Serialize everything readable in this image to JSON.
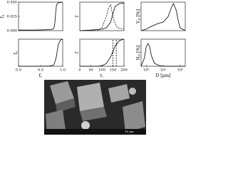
{
  "chart_data": [
    {
      "type": "line",
      "ylabel": {
        "text": "f",
        "sub": "S"
      },
      "xlim": [
        0,
        1
      ],
      "ylim": [
        0,
        0.05
      ],
      "yticks": [
        {
          "value": 0,
          "label": "0.000"
        },
        {
          "value": 0.025,
          "label": "0.025"
        },
        {
          "value": 0.05,
          "label": "0.050"
        }
      ],
      "series": [
        {
          "color": "#000000",
          "dash": false,
          "x": [
            0,
            0.2,
            0.4,
            0.6,
            0.75,
            0.8,
            0.82,
            0.84,
            0.86,
            0.9,
            1.0
          ],
          "values": [
            0.001,
            0.001,
            0.001,
            0.0015,
            0.002,
            0.004,
            0.012,
            0.03,
            0.045,
            0.049,
            0.05
          ]
        }
      ]
    },
    {
      "type": "line",
      "ylabel": {
        "text": "f",
        "sub": "S"
      },
      "xlabel": {
        "text": "f",
        "sub": "c"
      },
      "xlim": [
        0,
        1
      ],
      "ylim": [
        0,
        1
      ],
      "xticks": [
        {
          "value": 0,
          "label": "0.0"
        },
        {
          "value": 0.5,
          "label": "0.5"
        },
        {
          "value": 1,
          "label": "1.0"
        }
      ],
      "series": [
        {
          "color": "#000000",
          "dash": false,
          "x": [
            0,
            0.5,
            0.7,
            0.8,
            0.85,
            0.9,
            0.95,
            1.0
          ],
          "values": [
            0,
            0,
            0.01,
            0.05,
            0.3,
            0.8,
            0.97,
            1
          ]
        }
      ]
    },
    {
      "type": "line",
      "ylabel": {
        "text": "f"
      },
      "xlim": [
        0,
        200
      ],
      "ylim": [
        0,
        1
      ],
      "series": [
        {
          "color": "#000000",
          "dash": false,
          "x": [
            0,
            50,
            100,
            120,
            140,
            150,
            160,
            180,
            200
          ],
          "values": [
            0,
            0.02,
            0.05,
            0.1,
            0.3,
            0.6,
            0.85,
            0.95,
            0.97
          ]
        },
        {
          "color": "#000000",
          "dash": true,
          "x": [
            0,
            80,
            100,
            120,
            130,
            140,
            150,
            160,
            170,
            200
          ],
          "values": [
            0,
            0,
            0.1,
            0.5,
            0.8,
            0.9,
            0.5,
            0.25,
            0.1,
            0.05
          ]
        }
      ]
    },
    {
      "type": "line",
      "ylabel": {
        "text": "f"
      },
      "xlabel": {
        "text": "t",
        "sub": "c"
      },
      "xlim": [
        0,
        200
      ],
      "ylim": [
        0,
        1
      ],
      "xticks": [
        0,
        50,
        100,
        150,
        200
      ],
      "series": [
        {
          "color": "#000000",
          "dash": false,
          "x": [
            0,
            80,
            100,
            120,
            140,
            160,
            180,
            200
          ],
          "values": [
            0,
            0,
            0.02,
            0.1,
            0.35,
            0.75,
            0.95,
            1
          ]
        },
        {
          "color": "#000000",
          "dash": true,
          "x": [
            150,
            150
          ],
          "values": [
            0,
            1
          ]
        },
        {
          "color": "#000000",
          "dash": true,
          "x": [
            165,
            165
          ],
          "values": [
            0,
            1
          ]
        }
      ]
    },
    {
      "type": "line",
      "ylabel": {
        "text": "V",
        "sub": "D",
        "after": " [%]"
      },
      "xscale": "log",
      "xlim": [
        0.5,
        200
      ],
      "ylim": [
        0,
        10
      ],
      "series": [
        {
          "color": "#000000",
          "dash": false,
          "x": [
            0.5,
            1,
            2,
            5,
            10,
            20,
            30,
            40,
            60,
            80,
            100,
            200
          ],
          "values": [
            0,
            0.5,
            1.5,
            2.5,
            3,
            5,
            8,
            9.5,
            7,
            3,
            1,
            0
          ]
        }
      ]
    },
    {
      "type": "line",
      "ylabel": {
        "text": "N",
        "sub": "D",
        "after": " [%]"
      },
      "xlabel": {
        "text": "D [μm]"
      },
      "xscale": "log",
      "xlim": [
        0.5,
        200
      ],
      "ylim": [
        0,
        25
      ],
      "xticks": [
        {
          "value": 1,
          "label": "10⁰"
        },
        {
          "value": 10,
          "label": "10¹"
        },
        {
          "value": 100,
          "label": "10²"
        }
      ],
      "series": [
        {
          "color": "#000000",
          "dash": false,
          "x": [
            0.5,
            0.8,
            1,
            1.3,
            1.6,
            2,
            3,
            5,
            10,
            200
          ],
          "values": [
            0,
            8,
            18,
            21,
            18,
            10,
            3,
            1,
            0,
            0
          ]
        }
      ]
    }
  ],
  "image": {
    "scale_label": "10 μm"
  }
}
